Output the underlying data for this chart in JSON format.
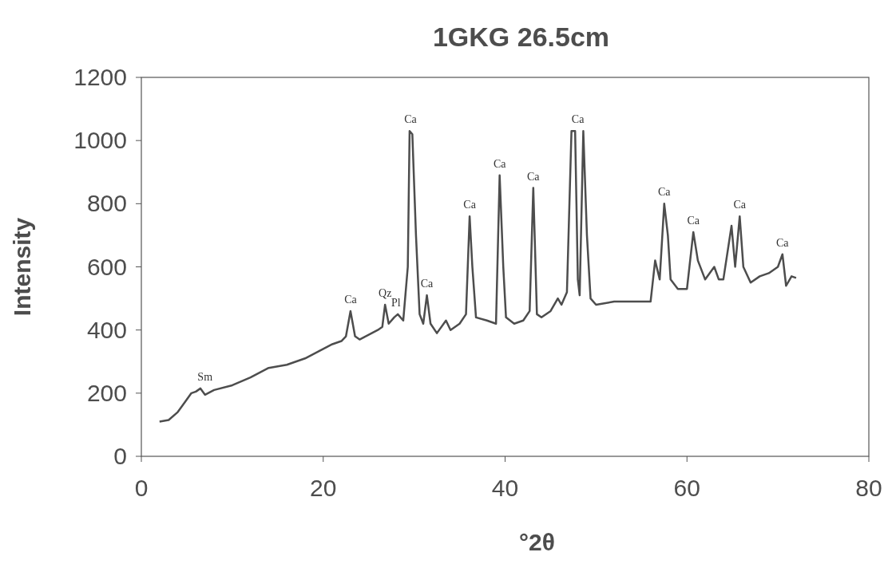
{
  "chart_data": {
    "type": "line",
    "title": "1GKG 26.5cm",
    "xlabel": "°2θ",
    "ylabel": "Intensity",
    "xlim": [
      0,
      80
    ],
    "xticks": [
      0,
      20,
      40,
      60,
      80
    ],
    "ylim": [
      0,
      1200
    ],
    "yticks": [
      0,
      200,
      400,
      600,
      800,
      1000,
      1200
    ],
    "grid": false,
    "marker": "none",
    "line_style": "solid",
    "series": [
      {
        "color": "#4d4d4d",
        "x": [
          2,
          3,
          4,
          5,
          5.5,
          6,
          6.5,
          7,
          8,
          10,
          12,
          14,
          16,
          18,
          20,
          21,
          22,
          22.5,
          23,
          23.5,
          24,
          25,
          26,
          26.5,
          26.8,
          27.2,
          27.8,
          28.2,
          28.8,
          29.3,
          29.5,
          29.8,
          30.2,
          30.6,
          31,
          31.4,
          31.8,
          32.5,
          33.5,
          34,
          35,
          35.7,
          36.1,
          36.4,
          36.8,
          38,
          39,
          39.4,
          39.8,
          40.1,
          41,
          42,
          42.7,
          43.1,
          43.5,
          44,
          45,
          45.8,
          46.2,
          46.8,
          47.3,
          47.7,
          48,
          48.2,
          48.6,
          49,
          49.4,
          50,
          52,
          54,
          56,
          56.5,
          57,
          57.5,
          57.9,
          58.2,
          59,
          60,
          60.7,
          61.2,
          62,
          63,
          63.5,
          64,
          64.9,
          65.3,
          65.8,
          66.2,
          67,
          68,
          69,
          70,
          70.5,
          70.9,
          71.5,
          72
        ],
        "values": [
          110,
          115,
          140,
          180,
          200,
          205,
          215,
          195,
          210,
          225,
          250,
          280,
          290,
          310,
          340,
          355,
          365,
          380,
          460,
          380,
          370,
          385,
          400,
          410,
          480,
          420,
          440,
          450,
          430,
          600,
          1030,
          1020,
          700,
          450,
          420,
          510,
          420,
          390,
          430,
          400,
          420,
          450,
          760,
          600,
          440,
          430,
          420,
          890,
          600,
          440,
          420,
          430,
          460,
          850,
          450,
          440,
          460,
          500,
          480,
          520,
          1030,
          1030,
          560,
          510,
          1030,
          700,
          500,
          480,
          490,
          490,
          490,
          620,
          560,
          800,
          700,
          560,
          530,
          530,
          710,
          620,
          560,
          600,
          560,
          560,
          730,
          600,
          760,
          600,
          550,
          570,
          580,
          600,
          640,
          540,
          570,
          565
        ]
      }
    ],
    "annotations": [
      {
        "text": "Sm",
        "x": 7,
        "y": 215
      },
      {
        "text": "Ca",
        "x": 23,
        "y": 460
      },
      {
        "text": "Qz",
        "x": 26.8,
        "y": 480
      },
      {
        "text": "Pl",
        "x": 28,
        "y": 450
      },
      {
        "text": "Ca",
        "x": 29.6,
        "y": 1030
      },
      {
        "text": "Ca",
        "x": 31.4,
        "y": 510
      },
      {
        "text": "Ca",
        "x": 36.1,
        "y": 760
      },
      {
        "text": "Ca",
        "x": 39.4,
        "y": 890
      },
      {
        "text": "Ca",
        "x": 43.1,
        "y": 850
      },
      {
        "text": "Ca",
        "x": 48,
        "y": 1030
      },
      {
        "text": "Ca",
        "x": 57.5,
        "y": 800
      },
      {
        "text": "Ca",
        "x": 60.7,
        "y": 710
      },
      {
        "text": "Ca",
        "x": 65.8,
        "y": 760
      },
      {
        "text": "Ca",
        "x": 70.5,
        "y": 640
      }
    ]
  }
}
